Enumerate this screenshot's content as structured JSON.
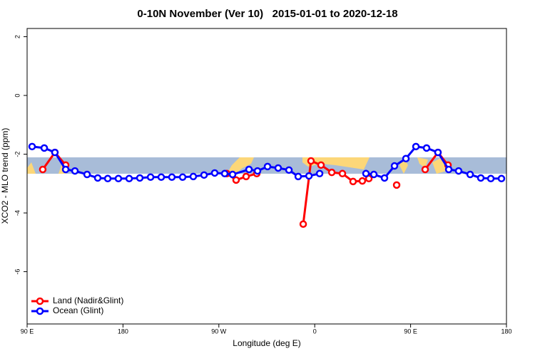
{
  "chart_data": {
    "type": "line",
    "title": "0-10N November (Ver 10)   2015-01-01 to 2020-12-18",
    "x_label": "Longitude (deg E)",
    "y_label": "XCO2 - MLO trend (ppm)",
    "xlim": [
      90,
      540
    ],
    "xticks": [
      {
        "value": 90,
        "label": "90 E"
      },
      {
        "value": 180,
        "label": "180"
      },
      {
        "value": 270,
        "label": "90 W"
      },
      {
        "value": 360,
        "label": "0"
      },
      {
        "value": 450,
        "label": "90 E"
      },
      {
        "value": 540,
        "label": "180"
      }
    ],
    "ylim": [
      -7.78,
      2.28
    ],
    "yticks": [
      2,
      0,
      -2,
      -4,
      -6
    ],
    "legend": "bottomleft",
    "series": [
      {
        "name": "Land (Nadir&Glint)",
        "color": "#ff0000",
        "x": [
          104.7,
          116.1,
          126.2,
          null,
          277.5,
          286.2,
          295.6,
          305.6,
          null,
          349.2,
          356.5,
          365.9,
          376.0,
          386.0,
          396.0,
          404.7,
          410.8,
          null,
          436.9,
          null,
          463.7,
          475.7,
          485.1
        ],
        "values": [
          -2.52,
          -1.94,
          -2.37,
          null,
          -2.66,
          -2.88,
          -2.76,
          -2.66,
          null,
          -4.38,
          -2.23,
          -2.37,
          -2.62,
          -2.66,
          -2.93,
          -2.91,
          -2.83,
          null,
          -3.05,
          null,
          -2.52,
          -1.94,
          -2.37
        ]
      },
      {
        "name": "Ocean (Glint)",
        "color": "#0000ff",
        "x": [
          94.7,
          106.1,
          116.1,
          126.2,
          134.9,
          146.3,
          156.3,
          165.7,
          175.7,
          185.8,
          195.8,
          205.9,
          215.9,
          225.9,
          236.0,
          246.0,
          256.1,
          266.1,
          275.5,
          282.9,
          298.3,
          306.3,
          315.7,
          325.7,
          335.8,
          344.5,
          354.6,
          364.6,
          null,
          408.1,
          415.5,
          425.5,
          434.9,
          445.6,
          455.0,
          465.0,
          475.7,
          485.8,
          495.1,
          505.9,
          515.9,
          525.3,
          535.3
        ],
        "values": [
          -1.74,
          -1.79,
          -1.94,
          -2.52,
          -2.57,
          -2.69,
          -2.81,
          -2.83,
          -2.83,
          -2.83,
          -2.81,
          -2.78,
          -2.78,
          -2.78,
          -2.78,
          -2.76,
          -2.71,
          -2.64,
          -2.66,
          -2.69,
          -2.52,
          -2.57,
          -2.42,
          -2.47,
          -2.54,
          -2.76,
          -2.74,
          -2.66,
          null,
          -2.66,
          -2.69,
          -2.81,
          -2.4,
          -2.15,
          -1.74,
          -1.79,
          -1.94,
          -2.52,
          -2.57,
          -2.69,
          -2.81,
          -2.83,
          -2.83
        ]
      }
    ]
  }
}
